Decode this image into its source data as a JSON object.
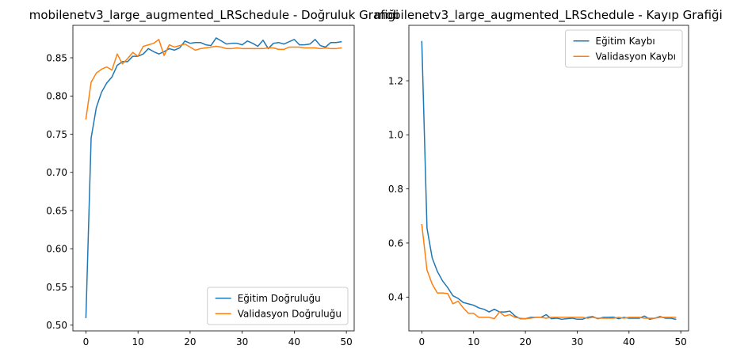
{
  "colors": {
    "train": "#1f77b4",
    "val": "#ff7f0e"
  },
  "chart_data": [
    {
      "type": "line",
      "title": "mobilenetv3_large_augmented_LRSchedule - Doğruluk Grafiği",
      "xlabel": "",
      "ylabel": "",
      "xlim": [
        -2.5,
        51.5
      ],
      "ylim": [
        0.4925,
        0.8925
      ],
      "xticks": [
        0,
        10,
        20,
        30,
        40,
        50
      ],
      "yticks": [
        0.5,
        0.55,
        0.6,
        0.65,
        0.7,
        0.75,
        0.8,
        0.85
      ],
      "ytick_labels": [
        "0.50",
        "0.55",
        "0.60",
        "0.65",
        "0.70",
        "0.75",
        "0.80",
        "0.85"
      ],
      "grid": false,
      "legend_position": "lower right",
      "series": [
        {
          "name": "Eğitim Doğruluğu",
          "color": "#1f77b4",
          "x": [
            0,
            1,
            2,
            3,
            4,
            5,
            6,
            7,
            8,
            9,
            10,
            11,
            12,
            13,
            14,
            15,
            16,
            17,
            18,
            19,
            20,
            21,
            22,
            23,
            24,
            25,
            26,
            27,
            28,
            29,
            30,
            31,
            32,
            33,
            34,
            35,
            36,
            37,
            38,
            39,
            40,
            41,
            42,
            43,
            44,
            45,
            46,
            47,
            48,
            49
          ],
          "y": [
            0.51,
            0.745,
            0.785,
            0.805,
            0.817,
            0.825,
            0.84,
            0.845,
            0.845,
            0.852,
            0.852,
            0.855,
            0.862,
            0.858,
            0.855,
            0.858,
            0.862,
            0.86,
            0.863,
            0.872,
            0.869,
            0.87,
            0.87,
            0.867,
            0.866,
            0.876,
            0.872,
            0.868,
            0.869,
            0.869,
            0.867,
            0.872,
            0.869,
            0.865,
            0.873,
            0.862,
            0.869,
            0.87,
            0.868,
            0.871,
            0.874,
            0.867,
            0.867,
            0.868,
            0.874,
            0.866,
            0.864,
            0.87,
            0.87,
            0.871
          ]
        },
        {
          "name": "Validasyon Doğruluğu",
          "color": "#ff7f0e",
          "x": [
            0,
            1,
            2,
            3,
            4,
            5,
            6,
            7,
            8,
            9,
            10,
            11,
            12,
            13,
            14,
            15,
            16,
            17,
            18,
            19,
            20,
            21,
            22,
            23,
            24,
            25,
            26,
            27,
            28,
            29,
            30,
            31,
            32,
            33,
            34,
            35,
            36,
            37,
            38,
            39,
            40,
            41,
            42,
            43,
            44,
            45,
            46,
            47,
            48,
            49
          ],
          "y": [
            0.77,
            0.818,
            0.83,
            0.835,
            0.838,
            0.834,
            0.855,
            0.842,
            0.849,
            0.857,
            0.852,
            0.865,
            0.867,
            0.869,
            0.874,
            0.853,
            0.867,
            0.864,
            0.866,
            0.868,
            0.864,
            0.86,
            0.862,
            0.863,
            0.864,
            0.865,
            0.864,
            0.862,
            0.862,
            0.863,
            0.862,
            0.862,
            0.862,
            0.862,
            0.862,
            0.863,
            0.863,
            0.861,
            0.861,
            0.864,
            0.864,
            0.864,
            0.863,
            0.863,
            0.863,
            0.862,
            0.863,
            0.862,
            0.862,
            0.863
          ]
        }
      ]
    },
    {
      "type": "line",
      "title": "mobilenetv3_large_augmented_LRSchedule - Kayıp Grafiği",
      "xlabel": "",
      "ylabel": "",
      "xlim": [
        -2.5,
        51.5
      ],
      "ylim": [
        0.275,
        1.405
      ],
      "xticks": [
        0,
        10,
        20,
        30,
        40,
        50
      ],
      "yticks": [
        0.4,
        0.6,
        0.8,
        1.0,
        1.2
      ],
      "ytick_labels": [
        "0.4",
        "0.6",
        "0.8",
        "1.0",
        "1.2"
      ],
      "grid": false,
      "legend_position": "upper right",
      "series": [
        {
          "name": "Eğitim Kaybı",
          "color": "#1f77b4",
          "x": [
            0,
            1,
            2,
            3,
            4,
            5,
            6,
            7,
            8,
            9,
            10,
            11,
            12,
            13,
            14,
            15,
            16,
            17,
            18,
            19,
            20,
            21,
            22,
            23,
            24,
            25,
            26,
            27,
            28,
            29,
            30,
            31,
            32,
            33,
            34,
            35,
            36,
            37,
            38,
            39,
            40,
            41,
            42,
            43,
            44,
            45,
            46,
            47,
            48,
            49
          ],
          "y": [
            1.345,
            0.655,
            0.545,
            0.495,
            0.46,
            0.435,
            0.405,
            0.395,
            0.38,
            0.375,
            0.37,
            0.36,
            0.355,
            0.345,
            0.355,
            0.345,
            0.345,
            0.348,
            0.33,
            0.32,
            0.32,
            0.325,
            0.325,
            0.325,
            0.335,
            0.32,
            0.322,
            0.318,
            0.32,
            0.322,
            0.318,
            0.318,
            0.325,
            0.328,
            0.32,
            0.325,
            0.325,
            0.326,
            0.32,
            0.325,
            0.322,
            0.322,
            0.322,
            0.33,
            0.318,
            0.322,
            0.328,
            0.322,
            0.322,
            0.318
          ]
        },
        {
          "name": "Validasyon Kaybı",
          "color": "#ff7f0e",
          "x": [
            0,
            1,
            2,
            3,
            4,
            5,
            6,
            7,
            8,
            9,
            10,
            11,
            12,
            13,
            14,
            15,
            16,
            17,
            18,
            19,
            20,
            21,
            22,
            23,
            24,
            25,
            26,
            27,
            28,
            29,
            30,
            31,
            32,
            33,
            34,
            35,
            36,
            37,
            38,
            39,
            40,
            41,
            42,
            43,
            44,
            45,
            46,
            47,
            48,
            49
          ],
          "y": [
            0.668,
            0.5,
            0.448,
            0.415,
            0.415,
            0.413,
            0.375,
            0.385,
            0.36,
            0.34,
            0.34,
            0.325,
            0.325,
            0.325,
            0.32,
            0.345,
            0.33,
            0.335,
            0.325,
            0.322,
            0.32,
            0.322,
            0.325,
            0.325,
            0.322,
            0.325,
            0.325,
            0.325,
            0.325,
            0.325,
            0.325,
            0.325,
            0.322,
            0.325,
            0.322,
            0.322,
            0.322,
            0.322,
            0.325,
            0.322,
            0.325,
            0.325,
            0.325,
            0.322,
            0.322,
            0.322,
            0.325,
            0.325,
            0.325,
            0.325
          ]
        }
      ]
    }
  ]
}
